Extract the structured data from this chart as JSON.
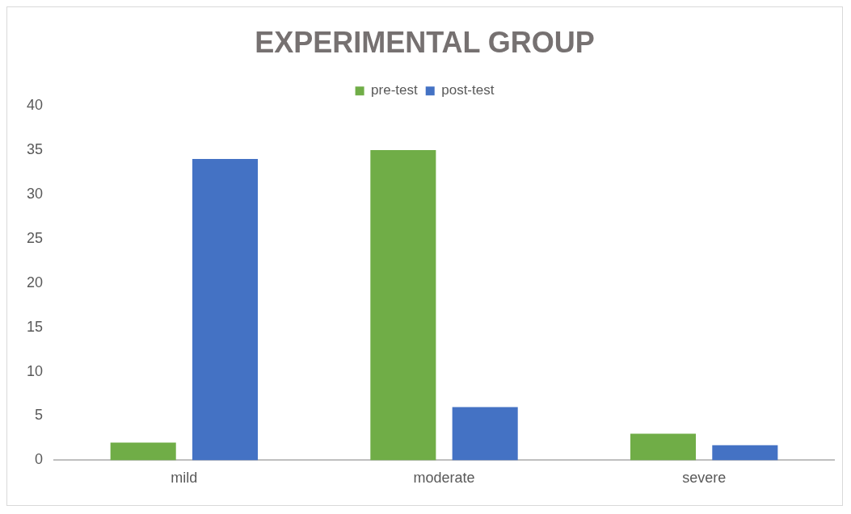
{
  "chart_data": {
    "type": "bar",
    "title": "EXPERIMENTAL GROUP",
    "categories": [
      "mild",
      "moderate",
      "severe"
    ],
    "series": [
      {
        "name": "pre-test",
        "color": "#70ad47",
        "values": [
          2,
          35,
          3
        ]
      },
      {
        "name": "post-test",
        "color": "#4472c4",
        "values": [
          34,
          6,
          1.7
        ]
      }
    ],
    "ylim": [
      0,
      40
    ],
    "yticks": [
      0,
      5,
      10,
      15,
      20,
      25,
      30,
      35,
      40
    ],
    "grid": false,
    "legend": "top"
  }
}
